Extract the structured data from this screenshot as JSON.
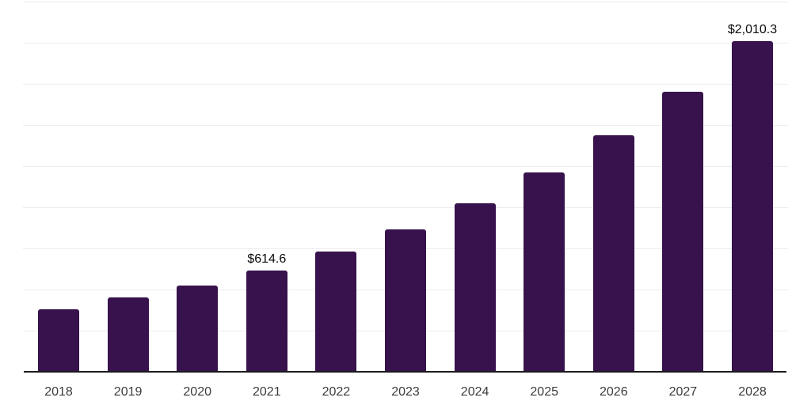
{
  "chart_data": {
    "type": "bar",
    "title": "",
    "xlabel": "",
    "ylabel": "",
    "categories": [
      "2018",
      "2019",
      "2020",
      "2021",
      "2022",
      "2023",
      "2024",
      "2025",
      "2026",
      "2027",
      "2028"
    ],
    "values": [
      380,
      452,
      524,
      614.6,
      731,
      865,
      1025,
      1212,
      1437,
      1703,
      2010.3
    ],
    "data_labels": [
      "",
      "",
      "",
      "$614.6",
      "",
      "",
      "",
      "",
      "",
      "",
      "$2,010.3"
    ],
    "ylim": [
      0,
      2250
    ],
    "gridline_step": 250,
    "grid": true,
    "legend": false,
    "y_axis_tick_labels_visible": false,
    "colors": {
      "bar": "#37124C",
      "gridline": "#ededed",
      "axis_line": "#1c1c1c",
      "x_tick_label": "#3b3b3b",
      "data_label": "#0a0a0a",
      "background": "#ffffff"
    }
  }
}
